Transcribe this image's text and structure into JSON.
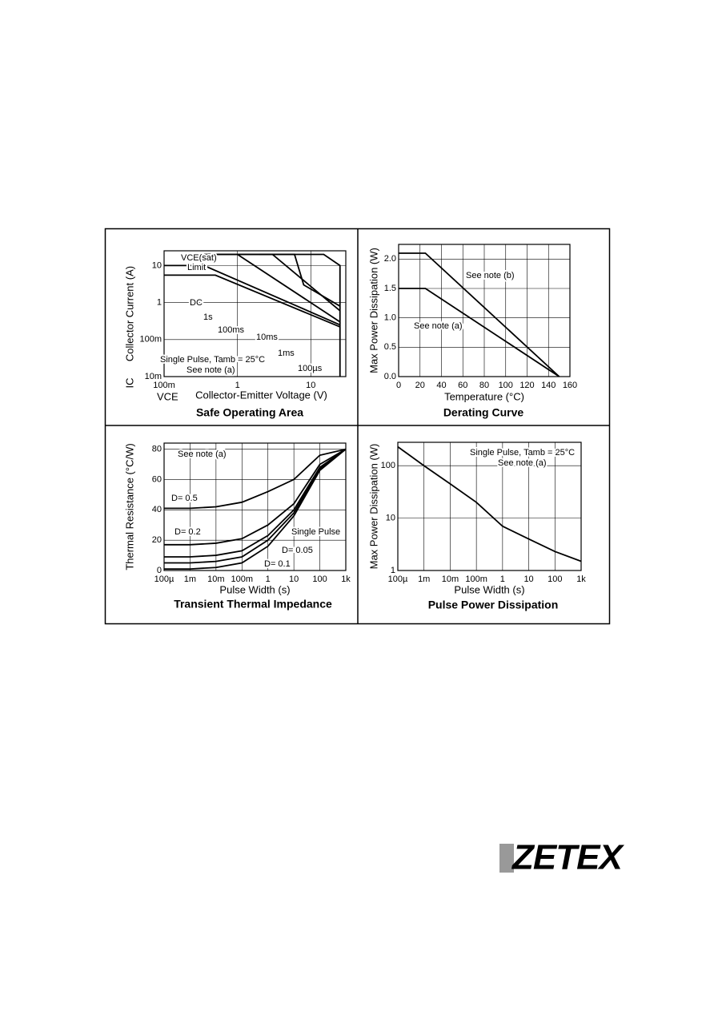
{
  "chart_data": [
    {
      "type": "line",
      "title": "Safe Operating Area",
      "xlabel": "Collector-Emitter Voltage (V)",
      "x_symbol": "VCE",
      "ylabel": "Collector Current (A)",
      "y_symbol": "IC",
      "xscale": "log",
      "yscale": "log",
      "xlim": [
        0.1,
        30
      ],
      "ylim": [
        0.01,
        25
      ],
      "xticks": [
        {
          "value": 0.1,
          "label": "100m"
        },
        1,
        10
      ],
      "yticks": [
        {
          "value": 0.01,
          "label": "10m"
        },
        {
          "value": 0.1,
          "label": "100m"
        },
        1,
        10
      ],
      "grid": true,
      "annotations": [
        "VCE(sat)",
        "Limit",
        "Single Pulse, Tamb = 25°C",
        "See note (a)"
      ],
      "series": [
        {
          "name": "DC",
          "color": "#000000",
          "x": [
            0.1,
            0.5,
            25
          ],
          "values": [
            5.5,
            5.5,
            0.22
          ]
        },
        {
          "name": "1s",
          "color": "#000000",
          "x": [
            0.1,
            0.35,
            25
          ],
          "values": [
            10,
            10,
            0.25
          ]
        },
        {
          "name": "100ms",
          "color": "#000000",
          "x": [
            0.3,
            1,
            25
          ],
          "values": [
            20,
            20,
            0.3
          ]
        },
        {
          "name": "10ms",
          "color": "#000000",
          "x": [
            0.4,
            3,
            25
          ],
          "values": [
            20,
            20,
            0.6
          ]
        },
        {
          "name": "1ms",
          "color": "#000000",
          "x": [
            1,
            6,
            8,
            25
          ],
          "values": [
            20,
            20,
            3,
            0.8
          ]
        },
        {
          "name": "100µs",
          "color": "#000000",
          "x": [
            2,
            15,
            25,
            25
          ],
          "values": [
            20,
            20,
            10,
            0.01
          ]
        }
      ]
    },
    {
      "type": "line",
      "title": "Derating Curve",
      "xlabel": "Temperature (°C)",
      "ylabel": "Max Power Dissipation (W)",
      "xscale": "linear",
      "yscale": "linear",
      "xlim": [
        0,
        160
      ],
      "ylim": [
        0,
        2.25
      ],
      "xticks": [
        0,
        20,
        40,
        60,
        80,
        100,
        120,
        140,
        160
      ],
      "yticks": [
        {
          "value": 0,
          "label": "0.0"
        },
        0.5,
        {
          "value": 1,
          "label": "1.0"
        },
        1.5,
        {
          "value": 2,
          "label": "2.0"
        }
      ],
      "grid": true,
      "series": [
        {
          "name": "See note (b)",
          "color": "#000000",
          "x": [
            0,
            25,
            150
          ],
          "values": [
            2.1,
            2.1,
            0
          ]
        },
        {
          "name": "See note (a)",
          "color": "#000000",
          "x": [
            0,
            25,
            150
          ],
          "values": [
            1.5,
            1.5,
            0
          ]
        }
      ]
    },
    {
      "type": "line",
      "title": "Transient Thermal Impedance",
      "xlabel": "Pulse Width (s)",
      "ylabel": "Thermal Resistance (°C/W)",
      "xscale": "log",
      "yscale": "linear",
      "xlim": [
        0.0001,
        1000
      ],
      "ylim": [
        0,
        84
      ],
      "xticks": [
        {
          "value": 0.0001,
          "label": "100µ"
        },
        {
          "value": 0.001,
          "label": "1m"
        },
        {
          "value": 0.01,
          "label": "10m"
        },
        {
          "value": 0.1,
          "label": "100m"
        },
        1,
        10,
        100,
        {
          "value": 1000,
          "label": "1k"
        }
      ],
      "yticks": [
        0,
        20,
        40,
        60,
        80
      ],
      "grid": true,
      "annotations": [
        "See note (a)"
      ],
      "x": [
        0.0001,
        0.001,
        0.01,
        0.1,
        1,
        10,
        100,
        1000
      ],
      "series": [
        {
          "name": "D= 0.5",
          "color": "#000000",
          "values": [
            41,
            41,
            42,
            45,
            52,
            60,
            76,
            80
          ]
        },
        {
          "name": "D= 0.2",
          "color": "#000000",
          "values": [
            17,
            17,
            18,
            21,
            30,
            44,
            70,
            80
          ]
        },
        {
          "name": "D= 0.1",
          "color": "#000000",
          "values": [
            9,
            9,
            10,
            13,
            23,
            40,
            68,
            80
          ]
        },
        {
          "name": "D= 0.05",
          "color": "#000000",
          "values": [
            5,
            5,
            6,
            9,
            20,
            38,
            67,
            80
          ]
        },
        {
          "name": "Single Pulse",
          "color": "#000000",
          "values": [
            1,
            1,
            2,
            5,
            16,
            36,
            66,
            80
          ]
        }
      ]
    },
    {
      "type": "line",
      "title": "Pulse Power Dissipation",
      "xlabel": "Pulse Width (s)",
      "ylabel": "Max Power Dissipation (W)",
      "xscale": "log",
      "yscale": "log",
      "xlim": [
        0.0001,
        1000
      ],
      "ylim": [
        1,
        280
      ],
      "xticks": [
        {
          "value": 0.0001,
          "label": "100µ"
        },
        {
          "value": 0.001,
          "label": "1m"
        },
        {
          "value": 0.01,
          "label": "10m"
        },
        {
          "value": 0.1,
          "label": "100m"
        },
        1,
        10,
        100,
        {
          "value": 1000,
          "label": "1k"
        }
      ],
      "yticks": [
        1,
        10,
        100
      ],
      "grid": true,
      "annotations": [
        "Single Pulse, Tamb = 25°C",
        "See note (a)"
      ],
      "x": [
        0.0001,
        0.001,
        0.01,
        0.1,
        1,
        10,
        100,
        1000
      ],
      "series": [
        {
          "color": "#000000",
          "values": [
            230,
            100,
            45,
            20,
            7,
            4,
            2.3,
            1.5
          ]
        }
      ]
    }
  ],
  "logo": "ZETEX"
}
